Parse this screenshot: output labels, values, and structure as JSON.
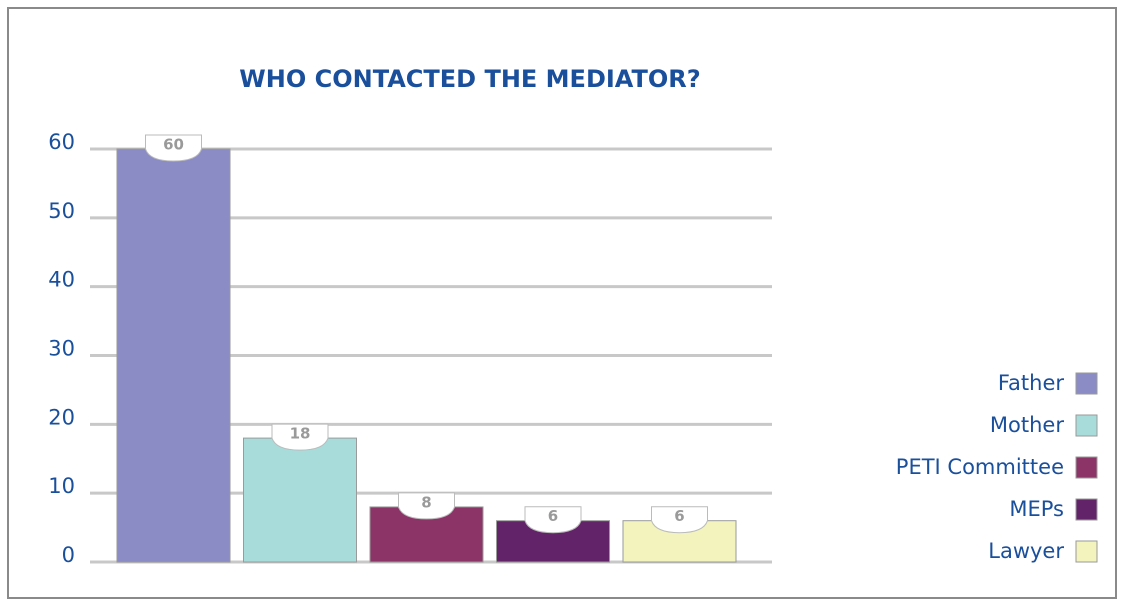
{
  "chart_data": {
    "type": "bar",
    "title": "WHO CONTACTED THE MEDIATOR?",
    "categories": [
      "Father",
      "Mother",
      "PETI Committee",
      "MEPs",
      "Lawyer"
    ],
    "values": [
      60,
      18,
      8,
      6,
      6
    ],
    "colors": [
      "#8b8cc5",
      "#a7dcdb",
      "#8c3467",
      "#632369",
      "#f3f3be"
    ],
    "ylim": [
      0,
      60
    ],
    "yticks": [
      0,
      10,
      20,
      30,
      40,
      50,
      60
    ],
    "grid": true,
    "legend": "right"
  }
}
